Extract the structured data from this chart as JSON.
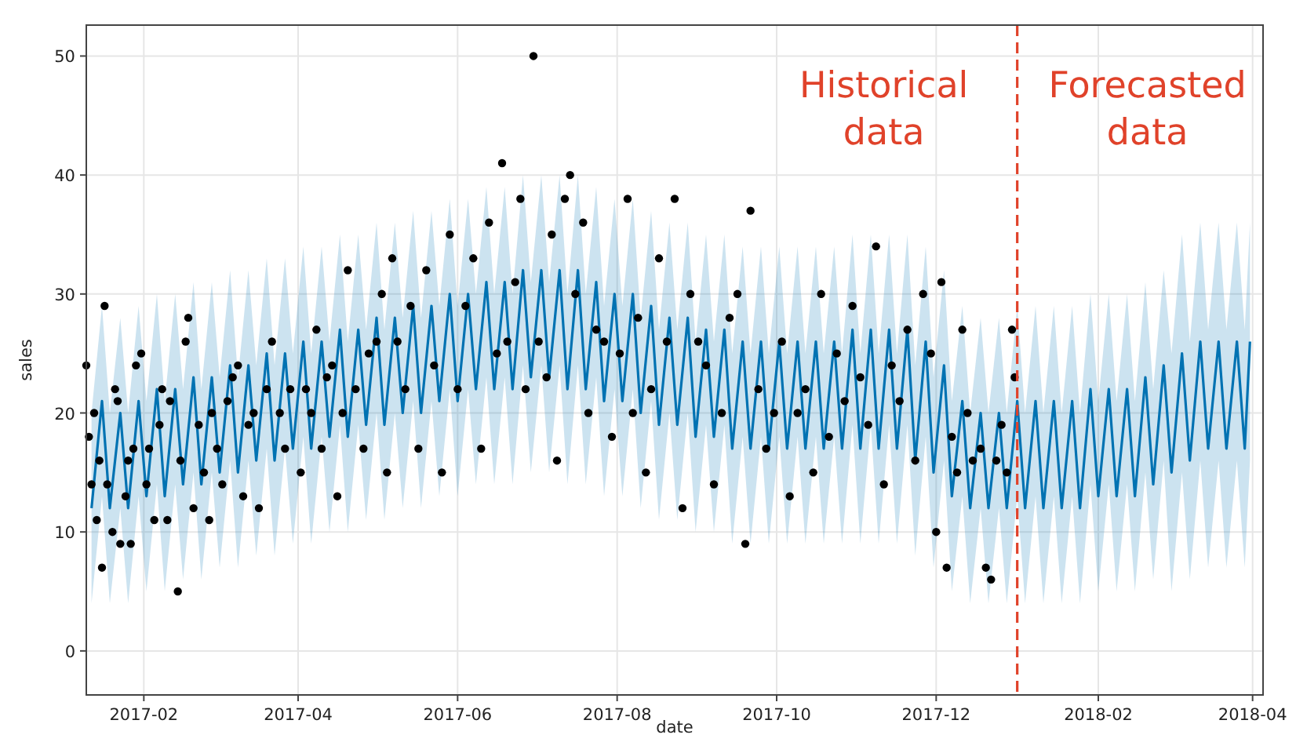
{
  "chart_data": {
    "type": "line",
    "xlabel": "date",
    "ylabel": "sales",
    "xlim": [
      "2017-01-10",
      "2018-04-05"
    ],
    "ylim": [
      -3.7,
      52.6
    ],
    "xticks": [
      {
        "value": "2017-02",
        "label": "2017-02"
      },
      {
        "value": "2017-04",
        "label": "2017-04"
      },
      {
        "value": "2017-06",
        "label": "2017-06"
      },
      {
        "value": "2017-08",
        "label": "2017-08"
      },
      {
        "value": "2017-10",
        "label": "2017-10"
      },
      {
        "value": "2017-12",
        "label": "2017-12"
      },
      {
        "value": "2018-02",
        "label": "2018-02"
      },
      {
        "value": "2018-04",
        "label": "2018-04"
      }
    ],
    "yticks": [
      0,
      10,
      20,
      30,
      40,
      50
    ],
    "grid": true,
    "annotations": [
      "Historical data",
      "Forecasted data"
    ],
    "ref_lines": [
      {
        "axis": "x",
        "value": "2018-01-01",
        "color": "#e0422a",
        "line_style": "dashed"
      }
    ],
    "series": [
      {
        "color": "#0072b2",
        "x": [
          "2017-01-12",
          "2017-01-16",
          "2017-01-19",
          "2017-01-23",
          "2017-01-26",
          "2017-01-30",
          "2017-02-02",
          "2017-02-06",
          "2017-02-09",
          "2017-02-13",
          "2017-02-16",
          "2017-02-20",
          "2017-02-23",
          "2017-02-27",
          "2017-03-02",
          "2017-03-06",
          "2017-03-09",
          "2017-03-13",
          "2017-03-16",
          "2017-03-20",
          "2017-03-23",
          "2017-03-27",
          "2017-03-30",
          "2017-04-03",
          "2017-04-06",
          "2017-04-10",
          "2017-04-13",
          "2017-04-17",
          "2017-04-20",
          "2017-04-24",
          "2017-04-27",
          "2017-05-01",
          "2017-05-04",
          "2017-05-08",
          "2017-05-11",
          "2017-05-15",
          "2017-05-18",
          "2017-05-22",
          "2017-05-25",
          "2017-05-29",
          "2017-06-01",
          "2017-06-05",
          "2017-06-08",
          "2017-06-12",
          "2017-06-15",
          "2017-06-19",
          "2017-06-22",
          "2017-06-26",
          "2017-06-29",
          "2017-07-03",
          "2017-07-06",
          "2017-07-10",
          "2017-07-13",
          "2017-07-17",
          "2017-07-20",
          "2017-07-24",
          "2017-07-27",
          "2017-07-31",
          "2017-08-03",
          "2017-08-07",
          "2017-08-10",
          "2017-08-14",
          "2017-08-17",
          "2017-08-21",
          "2017-08-24",
          "2017-08-28",
          "2017-08-31",
          "2017-09-04",
          "2017-09-07",
          "2017-09-11",
          "2017-09-14",
          "2017-09-18",
          "2017-09-21",
          "2017-09-25",
          "2017-09-28",
          "2017-10-02",
          "2017-10-05",
          "2017-10-09",
          "2017-10-12",
          "2017-10-16",
          "2017-10-19",
          "2017-10-23",
          "2017-10-26",
          "2017-10-30",
          "2017-11-02",
          "2017-11-06",
          "2017-11-09",
          "2017-11-13",
          "2017-11-16",
          "2017-11-20",
          "2017-11-23",
          "2017-11-27",
          "2017-11-30",
          "2017-12-04",
          "2017-12-07",
          "2017-12-11",
          "2017-12-14",
          "2017-12-18",
          "2017-12-21",
          "2017-12-25",
          "2017-12-28",
          "2018-01-01",
          "2018-01-04",
          "2018-01-08",
          "2018-01-11",
          "2018-01-15",
          "2018-01-18",
          "2018-01-22",
          "2018-01-25",
          "2018-01-29",
          "2018-02-01",
          "2018-02-05",
          "2018-02-08",
          "2018-02-12",
          "2018-02-15",
          "2018-02-19",
          "2018-02-22",
          "2018-02-26",
          "2018-03-01",
          "2018-03-05",
          "2018-03-08",
          "2018-03-12",
          "2018-03-15",
          "2018-03-19",
          "2018-03-22",
          "2018-03-26",
          "2018-03-29",
          "2018-03-31"
        ],
        "values": [
          12,
          21,
          12,
          20,
          12,
          21,
          13,
          22,
          13,
          22,
          14,
          23,
          14,
          23,
          15,
          24,
          15,
          24,
          16,
          25,
          16,
          25,
          17,
          26,
          17,
          26,
          18,
          27,
          18,
          27,
          19,
          28,
          19,
          28,
          20,
          29,
          20,
          29,
          21,
          30,
          21,
          30,
          22,
          31,
          22,
          31,
          22,
          32,
          23,
          32,
          23,
          32,
          22,
          32,
          22,
          31,
          21,
          30,
          21,
          30,
          20,
          29,
          19,
          28,
          19,
          28,
          18,
          27,
          18,
          27,
          17,
          26,
          17,
          26,
          17,
          26,
          17,
          26,
          17,
          26,
          17,
          26,
          17,
          27,
          17,
          27,
          17,
          27,
          17,
          27,
          16,
          26,
          15,
          24,
          13,
          21,
          12,
          20,
          12,
          20,
          12,
          21,
          12,
          21,
          12,
          21,
          12,
          21,
          12,
          22,
          13,
          22,
          13,
          22,
          13,
          23,
          14,
          24,
          15,
          25,
          16,
          26,
          17,
          26,
          17,
          26,
          17,
          26
        ],
        "lower": [
          4,
          13,
          4,
          12,
          4,
          13,
          5,
          14,
          5,
          14,
          6,
          15,
          6,
          15,
          7,
          16,
          7,
          16,
          8,
          17,
          8,
          17,
          9,
          18,
          9,
          18,
          10,
          19,
          10,
          19,
          11,
          20,
          11,
          20,
          12,
          21,
          12,
          21,
          13,
          22,
          13,
          22,
          14,
          23,
          14,
          23,
          14,
          24,
          15,
          24,
          15,
          24,
          14,
          24,
          14,
          23,
          13,
          22,
          13,
          22,
          12,
          21,
          11,
          20,
          11,
          20,
          10,
          19,
          10,
          19,
          9,
          18,
          9,
          18,
          9,
          18,
          9,
          18,
          9,
          18,
          9,
          18,
          9,
          19,
          9,
          19,
          9,
          19,
          9,
          19,
          8,
          18,
          7,
          16,
          5,
          13,
          4,
          12,
          4,
          12,
          4,
          13,
          4,
          13,
          4,
          13,
          4,
          13,
          4,
          14,
          5,
          14,
          5,
          14,
          5,
          15,
          6,
          16,
          5,
          15,
          6,
          16,
          7,
          16,
          7,
          16,
          7,
          16
        ],
        "upper": [
          20,
          29,
          20,
          28,
          20,
          29,
          21,
          30,
          21,
          30,
          22,
          31,
          22,
          31,
          23,
          32,
          23,
          32,
          24,
          33,
          24,
          33,
          25,
          34,
          25,
          34,
          26,
          35,
          26,
          35,
          27,
          36,
          27,
          36,
          28,
          37,
          28,
          37,
          29,
          38,
          29,
          38,
          30,
          39,
          30,
          39,
          30,
          40,
          31,
          40,
          31,
          40,
          30,
          40,
          30,
          39,
          29,
          38,
          29,
          38,
          28,
          37,
          27,
          36,
          27,
          36,
          26,
          35,
          26,
          35,
          25,
          34,
          25,
          34,
          25,
          34,
          25,
          34,
          25,
          34,
          25,
          34,
          25,
          35,
          25,
          35,
          25,
          35,
          25,
          35,
          24,
          34,
          23,
          32,
          21,
          29,
          20,
          28,
          20,
          28,
          20,
          29,
          20,
          29,
          20,
          29,
          20,
          29,
          20,
          30,
          21,
          30,
          21,
          30,
          21,
          31,
          22,
          32,
          25,
          35,
          26,
          36,
          27,
          36,
          27,
          36,
          27,
          36
        ]
      },
      {
        "type": "scatter",
        "marker": "circle",
        "color": "#000000",
        "x": [
          "2017-01-10",
          "2017-01-11",
          "2017-01-12",
          "2017-01-13",
          "2017-01-14",
          "2017-01-15",
          "2017-01-16",
          "2017-01-17",
          "2017-01-18",
          "2017-01-20",
          "2017-01-21",
          "2017-01-22",
          "2017-01-23",
          "2017-01-25",
          "2017-01-26",
          "2017-01-27",
          "2017-01-28",
          "2017-01-29",
          "2017-01-31",
          "2017-02-02",
          "2017-02-03",
          "2017-02-05",
          "2017-02-07",
          "2017-02-08",
          "2017-02-10",
          "2017-02-11",
          "2017-02-14",
          "2017-02-15",
          "2017-02-17",
          "2017-02-18",
          "2017-02-20",
          "2017-02-22",
          "2017-02-24",
          "2017-02-26",
          "2017-02-27",
          "2017-03-01",
          "2017-03-03",
          "2017-03-05",
          "2017-03-07",
          "2017-03-09",
          "2017-03-11",
          "2017-03-13",
          "2017-03-15",
          "2017-03-17",
          "2017-03-20",
          "2017-03-22",
          "2017-03-25",
          "2017-03-27",
          "2017-03-29",
          "2017-04-02",
          "2017-04-04",
          "2017-04-06",
          "2017-04-08",
          "2017-04-10",
          "2017-04-12",
          "2017-04-14",
          "2017-04-16",
          "2017-04-18",
          "2017-04-20",
          "2017-04-23",
          "2017-04-26",
          "2017-04-28",
          "2017-05-01",
          "2017-05-03",
          "2017-05-05",
          "2017-05-07",
          "2017-05-09",
          "2017-05-12",
          "2017-05-14",
          "2017-05-17",
          "2017-05-20",
          "2017-05-23",
          "2017-05-26",
          "2017-05-29",
          "2017-06-01",
          "2017-06-04",
          "2017-06-07",
          "2017-06-10",
          "2017-06-13",
          "2017-06-16",
          "2017-06-18",
          "2017-06-20",
          "2017-06-23",
          "2017-06-25",
          "2017-06-27",
          "2017-06-30",
          "2017-07-02",
          "2017-07-05",
          "2017-07-07",
          "2017-07-09",
          "2017-07-12",
          "2017-07-14",
          "2017-07-16",
          "2017-07-19",
          "2017-07-21",
          "2017-07-24",
          "2017-07-27",
          "2017-07-30",
          "2017-08-02",
          "2017-08-05",
          "2017-08-07",
          "2017-08-09",
          "2017-08-12",
          "2017-08-14",
          "2017-08-17",
          "2017-08-20",
          "2017-08-23",
          "2017-08-26",
          "2017-08-29",
          "2017-09-01",
          "2017-09-04",
          "2017-09-07",
          "2017-09-10",
          "2017-09-13",
          "2017-09-16",
          "2017-09-19",
          "2017-09-21",
          "2017-09-24",
          "2017-09-27",
          "2017-09-30",
          "2017-10-03",
          "2017-10-06",
          "2017-10-09",
          "2017-10-12",
          "2017-10-15",
          "2017-10-18",
          "2017-10-21",
          "2017-10-24",
          "2017-10-27",
          "2017-10-30",
          "2017-11-02",
          "2017-11-05",
          "2017-11-08",
          "2017-11-11",
          "2017-11-14",
          "2017-11-17",
          "2017-11-20",
          "2017-11-23",
          "2017-11-26",
          "2017-11-29",
          "2017-12-01",
          "2017-12-03",
          "2017-12-05",
          "2017-12-07",
          "2017-12-09",
          "2017-12-11",
          "2017-12-13",
          "2017-12-15",
          "2017-12-18",
          "2017-12-20",
          "2017-12-22",
          "2017-12-24",
          "2017-12-26",
          "2017-12-28",
          "2017-12-30",
          "2017-12-31"
        ],
        "values": [
          24,
          18,
          14,
          20,
          11,
          16,
          7,
          29,
          14,
          10,
          22,
          21,
          9,
          13,
          16,
          9,
          17,
          24,
          25,
          14,
          17,
          11,
          19,
          22,
          11,
          21,
          5,
          16,
          26,
          28,
          12,
          19,
          15,
          11,
          20,
          17,
          14,
          21,
          23,
          24,
          13,
          19,
          20,
          12,
          22,
          26,
          20,
          17,
          22,
          15,
          22,
          20,
          27,
          17,
          23,
          24,
          13,
          20,
          32,
          22,
          17,
          25,
          26,
          30,
          15,
          33,
          26,
          22,
          29,
          17,
          32,
          24,
          15,
          35,
          22,
          29,
          33,
          17,
          36,
          25,
          41,
          26,
          31,
          38,
          22,
          50,
          26,
          23,
          35,
          16,
          38,
          40,
          30,
          36,
          20,
          27,
          26,
          18,
          25,
          38,
          20,
          28,
          15,
          22,
          33,
          26,
          38,
          12,
          30,
          26,
          24,
          14,
          20,
          28,
          30,
          9,
          37,
          22,
          17,
          20,
          26,
          13,
          20,
          22,
          15,
          30,
          18,
          25,
          21,
          29,
          23,
          19,
          34,
          14,
          24,
          21,
          27,
          16,
          30,
          25,
          10,
          31,
          7,
          18,
          15,
          27,
          20,
          16,
          17,
          7,
          6,
          16,
          19,
          15,
          27,
          23
        ]
      }
    ]
  }
}
